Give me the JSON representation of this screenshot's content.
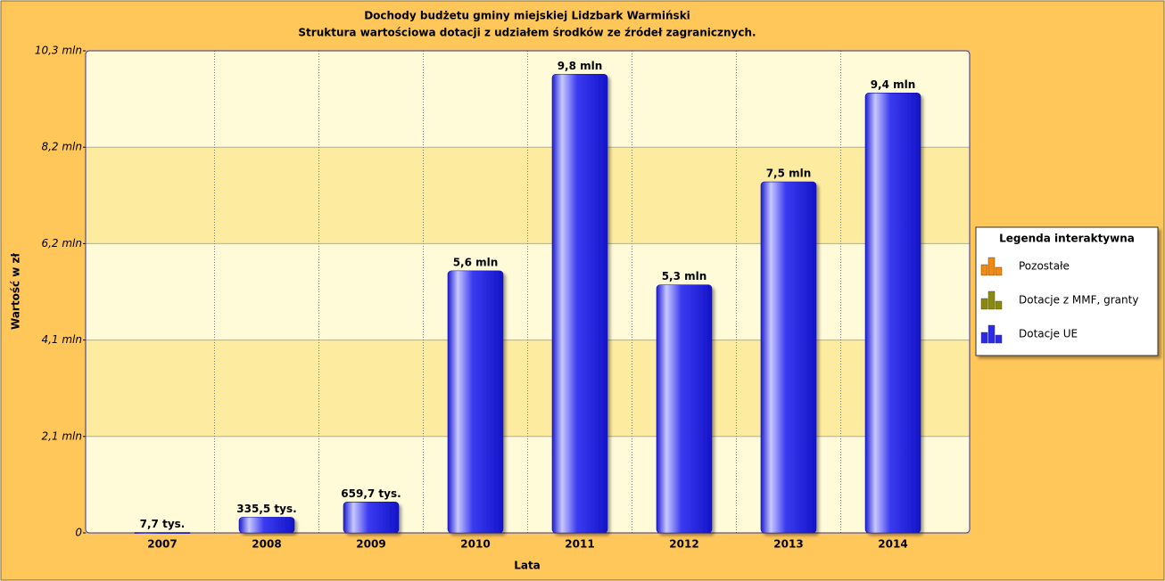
{
  "chart_data": {
    "type": "bar",
    "title": "Dochody budżetu  gminy miejskiej Lidzbark Warmiński",
    "subtitle": "Struktura wartościowa dotacji z udziałem środków ze źródeł zagranicznych.",
    "x_label": "Lata",
    "y_label": "Wartość w zł",
    "categories": [
      "2007",
      "2008",
      "2009",
      "2010",
      "2011",
      "2012",
      "2013",
      "2014"
    ],
    "values": [
      7700,
      335500,
      659700,
      5600000,
      9800000,
      5300000,
      7500000,
      9400000
    ],
    "value_labels": [
      "7,7 tys.",
      "335,5 tys.",
      "659,7 tys.",
      "5,6 mln",
      "9,8 mln",
      "5,3 mln",
      "7,5 mln",
      "9,4 mln"
    ],
    "color": "#2a2ae8",
    "ylim": [
      0,
      10300000
    ],
    "yticks": [
      0,
      {
        "value": 2060000,
        "label": "2,1 mln"
      },
      {
        "value": 4120000,
        "label": "4,1 mln"
      },
      {
        "value": 6180000,
        "label": "6,2 mln"
      },
      {
        "value": 8240000,
        "label": "8,2 mln"
      },
      {
        "value": 10300000,
        "label": "10,3 mln"
      }
    ],
    "grid": true,
    "legend": {
      "title": "Legenda interaktywna",
      "position": "right",
      "items": [
        {
          "name": "Pozostałe",
          "color": "#f08a10"
        },
        {
          "name": "Dotacje z MMF, granty",
          "color": "#8a8a10"
        },
        {
          "name": "Dotacje UE",
          "color": "#2a2ae8"
        }
      ]
    }
  }
}
